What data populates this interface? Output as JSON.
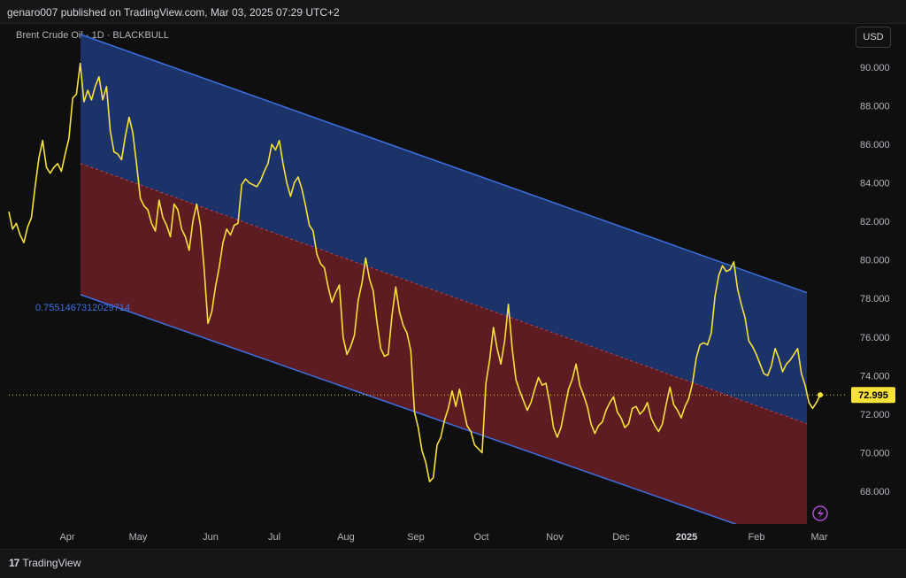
{
  "header": {
    "publish_text": "genaro007 published on TradingView.com, Mar 03, 2025 07:29 UTC+2",
    "symbol_text": "Brent Crude Oil · 1D · BLACKBULL",
    "currency_button": "USD"
  },
  "footer": {
    "brand_label": "TradingView"
  },
  "colors": {
    "price_line": "#f7e23a",
    "channel_border": "#3d6fe0",
    "upper_fill": "#1e3a7a",
    "lower_fill": "#6b1f24",
    "midline": "#c0404a",
    "current_price_bg": "#f7e23a"
  },
  "chart_data": {
    "type": "line",
    "title": "",
    "xlabel": "",
    "ylabel": "",
    "yticks": [
      "90.000",
      "88.000",
      "86.000",
      "84.000",
      "82.000",
      "80.000",
      "78.000",
      "76.000",
      "74.000",
      "72.000",
      "70.000",
      "68.000"
    ],
    "ylim": [
      66.3,
      92.2
    ],
    "xticks": [
      "Apr",
      "May",
      "Jun",
      "Jul",
      "Aug",
      "Sep",
      "Oct",
      "Nov",
      "Dec",
      "2025",
      "Feb",
      "Mar"
    ],
    "bold_xtick": "2025",
    "grid": false,
    "current_price": "72.995",
    "fib_label": "0.7551467312029714",
    "series": [
      {
        "values": [
          82.5,
          81.6,
          81.9,
          81.3,
          80.9,
          81.7,
          82.2,
          83.8,
          85.3,
          86.2,
          84.8,
          84.5,
          84.8,
          85.0,
          84.6,
          85.5,
          86.3,
          88.4,
          88.6,
          90.2,
          88.2,
          88.8,
          88.3,
          89.0,
          89.5,
          88.3,
          89.0,
          86.7,
          85.6,
          85.5,
          85.2,
          86.4,
          87.4,
          86.6,
          85.0,
          83.2,
          82.8,
          82.6,
          81.9,
          81.5,
          83.1,
          82.2,
          81.8,
          81.2,
          82.9,
          82.6,
          81.6,
          81.2,
          80.5,
          82.0,
          82.9,
          81.8,
          79.5,
          76.7,
          77.3,
          78.6,
          79.6,
          80.9,
          81.6,
          81.3,
          81.8,
          81.9,
          83.9,
          84.2,
          84.0,
          83.9,
          83.8,
          84.1,
          84.6,
          85.0,
          86.0,
          85.7,
          86.2,
          85.0,
          84.0,
          83.3,
          84.0,
          84.3,
          83.7,
          82.8,
          81.8,
          81.5,
          80.3,
          79.8,
          79.6,
          78.6,
          77.8,
          78.3,
          78.7,
          76.0,
          75.1,
          75.5,
          76.1,
          77.9,
          78.8,
          80.1,
          79.0,
          78.4,
          76.8,
          75.4,
          75.0,
          75.1,
          77.1,
          78.6,
          77.3,
          76.6,
          76.2,
          75.3,
          72.1,
          71.3,
          70.1,
          69.5,
          68.5,
          68.7,
          70.4,
          70.8,
          71.7,
          72.3,
          73.2,
          72.4,
          73.3,
          72.3,
          71.4,
          71.1,
          70.4,
          70.2,
          70.0,
          73.6,
          74.8,
          76.5,
          75.4,
          74.6,
          75.8,
          77.7,
          75.4,
          73.8,
          73.2,
          72.7,
          72.2,
          72.6,
          73.3,
          73.9,
          73.5,
          73.6,
          72.6,
          71.3,
          70.8,
          71.3,
          72.3,
          73.3,
          73.8,
          74.6,
          73.5,
          73.0,
          72.4,
          71.5,
          71.0,
          71.4,
          71.6,
          72.2,
          72.6,
          72.9,
          72.1,
          71.8,
          71.3,
          71.5,
          72.3,
          72.4,
          72.0,
          72.2,
          72.6,
          71.8,
          71.4,
          71.1,
          71.5,
          72.5,
          73.4,
          72.5,
          72.2,
          71.8,
          72.4,
          72.8,
          73.6,
          74.9,
          75.6,
          75.7,
          75.6,
          76.2,
          78.1,
          79.2,
          79.7,
          79.4,
          79.5,
          79.9,
          78.5,
          77.7,
          77.0,
          75.8,
          75.5,
          75.1,
          74.6,
          74.1,
          74.0,
          74.5,
          75.4,
          74.9,
          74.2,
          74.6,
          74.8,
          75.1,
          75.4,
          74.1,
          73.5,
          72.6,
          72.3,
          72.6,
          73.0
        ]
      }
    ],
    "channel": {
      "upper": {
        "start": 91.7,
        "end": 78.3
      },
      "mid": {
        "start": 85.0,
        "end": 71.5
      },
      "lower": {
        "start": 78.2,
        "end": 65.0
      }
    }
  }
}
